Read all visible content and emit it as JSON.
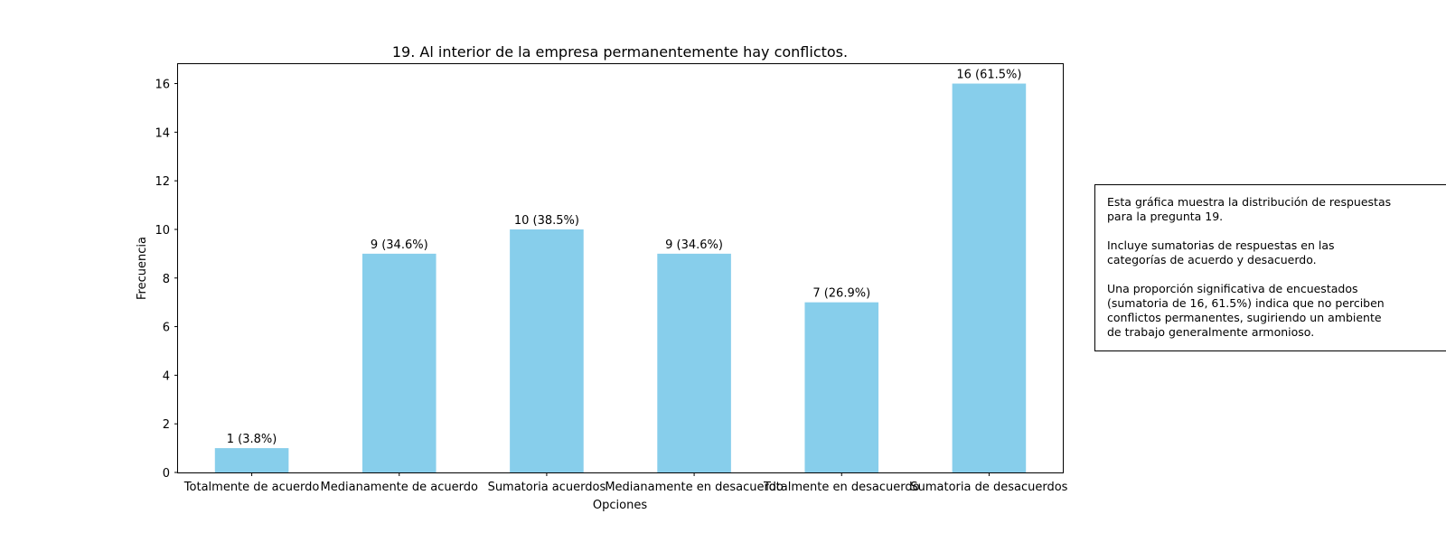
{
  "chart_data": {
    "type": "bar",
    "title": "19. Al interior de la empresa permanentemente hay conflictos.",
    "xlabel": "Opciones",
    "ylabel": "Frecuencia",
    "categories": [
      "Totalmente de acuerdo",
      "Medianamente de acuerdo",
      "Sumatoria acuerdos",
      "Medianamente en desacuerdo",
      "Totalmente en desacuerdo",
      "Sumatoria de desacuerdos"
    ],
    "values": [
      1,
      9,
      10,
      9,
      7,
      16
    ],
    "data_labels": [
      "1 (3.8%)",
      "9 (34.6%)",
      "10 (38.5%)",
      "9 (34.6%)",
      "7 (26.9%)",
      "16 (61.5%)"
    ],
    "yticks": [
      0,
      2,
      4,
      6,
      8,
      10,
      12,
      14,
      16
    ],
    "ylim": [
      0,
      16.8
    ],
    "bar_color": "#87CEEB",
    "grid": false,
    "legend": false
  },
  "annotation": {
    "paragraphs": [
      "Esta gráfica muestra la distribución de respuestas\npara la pregunta 19.",
      "Incluye sumatorias de respuestas en las\ncategorías de acuerdo y desacuerdo.",
      "Una proporción significativa de encuestados\n(sumatoria de 16, 61.5%) indica que no perciben\nconflictos permanentes, sugiriendo un ambiente\nde trabajo generalmente armonioso."
    ]
  }
}
